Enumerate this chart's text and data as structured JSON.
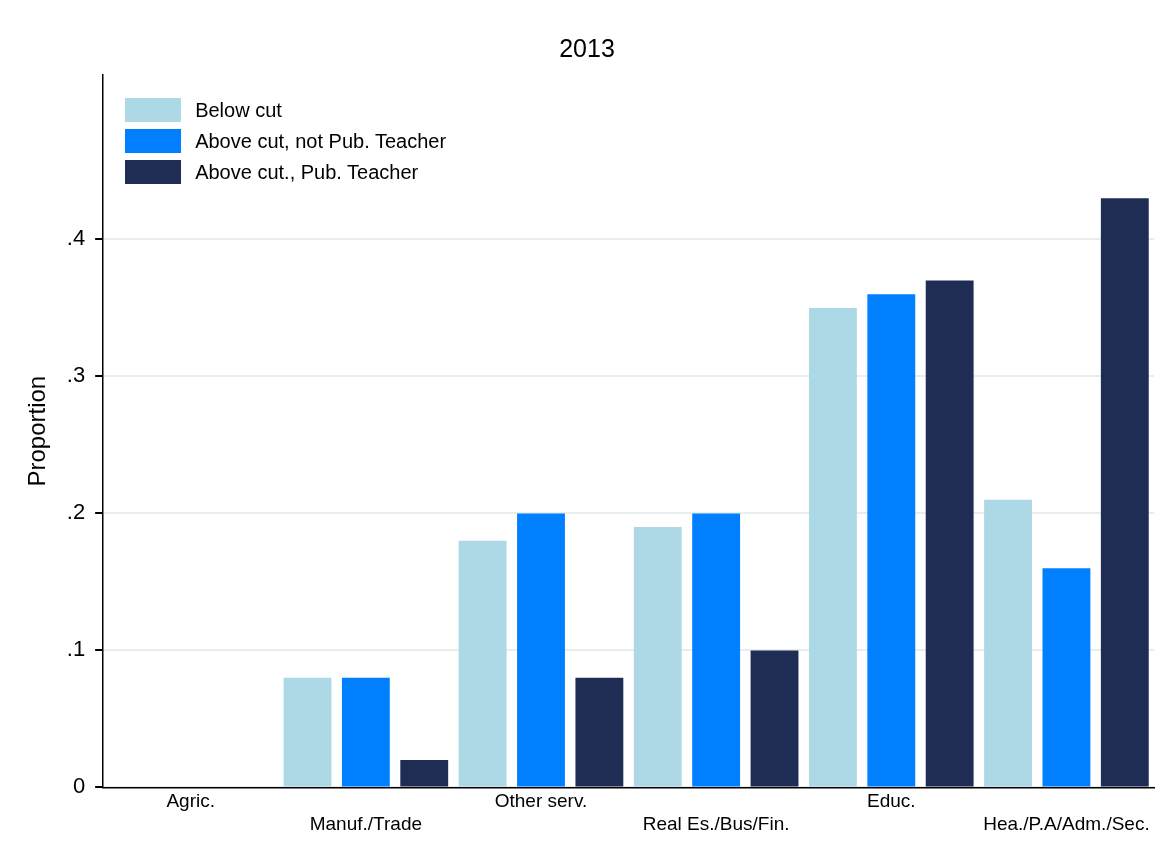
{
  "chart_data": {
    "type": "bar",
    "title": "2013",
    "ylabel": "Proportion",
    "categories": [
      "Agric.",
      "Manuf./Trade",
      "Other serv.",
      "Real Es./Bus/Fin.",
      "Educ.",
      "Hea./P.A/Adm./Sec."
    ],
    "series": [
      {
        "name": "Below cut",
        "color": "#add8e6",
        "values": [
          0,
          0.08,
          0.18,
          0.19,
          0.35,
          0.21
        ]
      },
      {
        "name": "Above cut, not Pub. Teacher",
        "color": "#0080ff",
        "values": [
          0,
          0.08,
          0.2,
          0.2,
          0.36,
          0.16
        ]
      },
      {
        "name": "Above cut., Pub. Teacher",
        "color": "#1f2d54",
        "values": [
          0,
          0.02,
          0.08,
          0.1,
          0.37,
          0.43
        ]
      }
    ],
    "ylim": [
      0,
      0.52
    ],
    "yticks": [
      {
        "value": 0,
        "label": "0"
      },
      {
        "value": 0.1,
        "label": ".1"
      },
      {
        "value": 0.2,
        "label": ".2"
      },
      {
        "value": 0.3,
        "label": ".3"
      },
      {
        "value": 0.4,
        "label": ".4"
      }
    ],
    "grid": "y",
    "legend": "top left"
  }
}
